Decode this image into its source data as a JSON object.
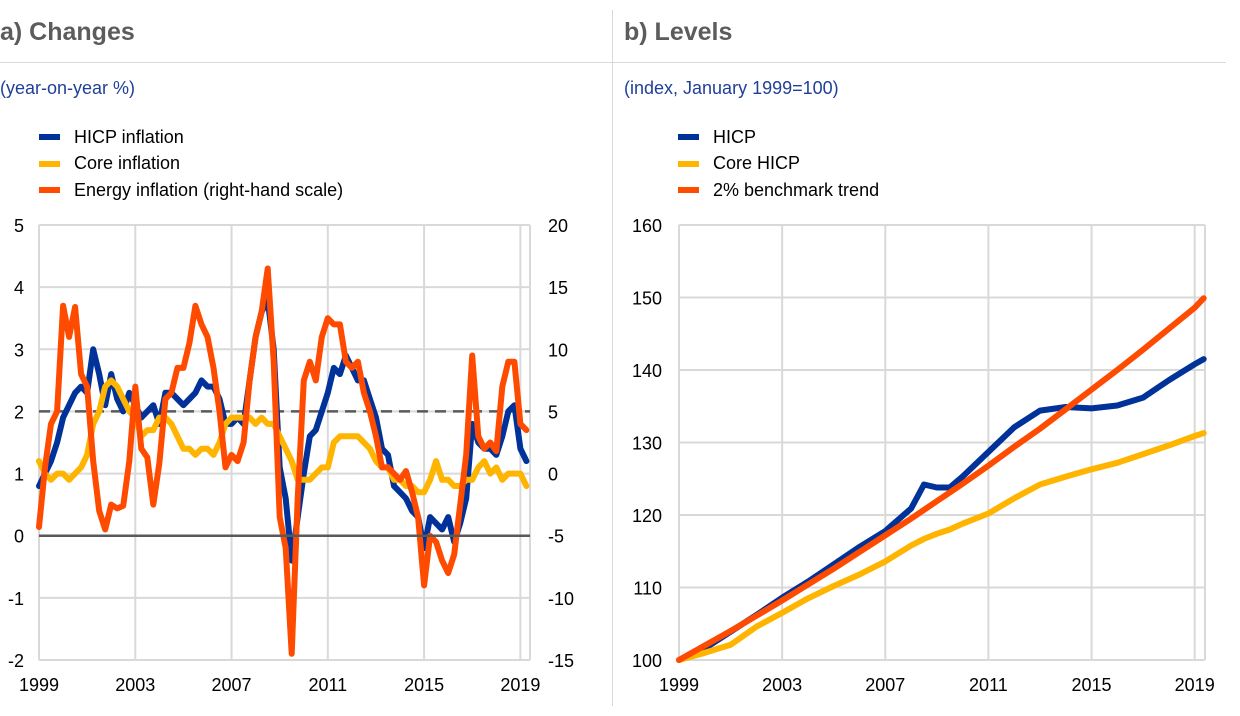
{
  "colors": {
    "hicp": "#003299",
    "core": "#ffb400",
    "energy": "#ff4b00",
    "benchmark": "#ff4b00",
    "grid": "#d9d9d9",
    "zero": "#595959",
    "dashed": "#595959"
  },
  "panel_a": {
    "title": "a) Changes",
    "subtitle": "(year-on-year %)",
    "legend": [
      {
        "label": "HICP inflation",
        "color": "#003299",
        "icon": "legend-swatch"
      },
      {
        "label": "Core inflation",
        "color": "#ffb400",
        "icon": "legend-swatch"
      },
      {
        "label": "Energy inflation (right-hand scale)",
        "color": "#ff4b00",
        "icon": "legend-swatch"
      }
    ]
  },
  "panel_b": {
    "title": "b) Levels",
    "subtitle": "(index, January 1999=100)",
    "legend": [
      {
        "label": "HICP",
        "color": "#003299",
        "icon": "legend-swatch"
      },
      {
        "label": "Core HICP",
        "color": "#ffb400",
        "icon": "legend-swatch"
      },
      {
        "label": "2% benchmark trend",
        "color": "#ff4b00",
        "icon": "legend-swatch"
      }
    ]
  },
  "chart_data": [
    {
      "type": "line",
      "title": "a) Changes",
      "subtitle": "(year-on-year %)",
      "xlabel": "",
      "ylabel": "",
      "xlim": [
        1999,
        2019.4
      ],
      "ylim": [
        -2,
        5
      ],
      "y2lim": [
        -15,
        20
      ],
      "x_ticks": [
        "1999",
        "2003",
        "2007",
        "2011",
        "2015",
        "2019"
      ],
      "y_ticks": [
        "5",
        "4",
        "3",
        "2",
        "1",
        "0",
        "-1",
        "-2"
      ],
      "y2_ticks": [
        "20",
        "15",
        "10",
        "5",
        "0",
        "-5",
        "-10",
        "-15"
      ],
      "grid": true,
      "reference_lines": [
        {
          "y": 2,
          "style": "dashed"
        },
        {
          "y": 0,
          "style": "solid"
        }
      ],
      "x": [
        1999.0,
        1999.25,
        1999.5,
        1999.75,
        2000.0,
        2000.25,
        2000.5,
        2000.75,
        2001.0,
        2001.25,
        2001.5,
        2001.75,
        2002.0,
        2002.25,
        2002.5,
        2002.75,
        2003.0,
        2003.25,
        2003.5,
        2003.75,
        2004.0,
        2004.25,
        2004.5,
        2004.75,
        2005.0,
        2005.25,
        2005.5,
        2005.75,
        2006.0,
        2006.25,
        2006.5,
        2006.75,
        2007.0,
        2007.25,
        2007.5,
        2007.75,
        2008.0,
        2008.25,
        2008.5,
        2008.75,
        2009.0,
        2009.25,
        2009.5,
        2009.75,
        2010.0,
        2010.25,
        2010.5,
        2010.75,
        2011.0,
        2011.25,
        2011.5,
        2011.75,
        2012.0,
        2012.25,
        2012.5,
        2012.75,
        2013.0,
        2013.25,
        2013.5,
        2013.75,
        2014.0,
        2014.25,
        2014.5,
        2014.75,
        2015.0,
        2015.25,
        2015.5,
        2015.75,
        2016.0,
        2016.25,
        2016.5,
        2016.75,
        2017.0,
        2017.25,
        2017.5,
        2017.75,
        2018.0,
        2018.25,
        2018.5,
        2018.75,
        2019.0,
        2019.25
      ],
      "series": [
        {
          "name": "HICP inflation",
          "axis": "left",
          "color": "#003299",
          "values": [
            0.8,
            1.0,
            1.2,
            1.5,
            1.9,
            2.1,
            2.3,
            2.4,
            2.3,
            3.0,
            2.6,
            2.1,
            2.6,
            2.2,
            2.0,
            2.3,
            2.1,
            1.9,
            2.0,
            2.1,
            1.8,
            2.3,
            2.3,
            2.2,
            2.1,
            2.2,
            2.3,
            2.5,
            2.4,
            2.4,
            2.2,
            1.8,
            1.8,
            1.9,
            1.8,
            2.5,
            3.2,
            3.6,
            3.8,
            3.0,
            1.1,
            0.6,
            -0.4,
            0.3,
            1.0,
            1.6,
            1.7,
            2.0,
            2.3,
            2.7,
            2.6,
            2.9,
            2.7,
            2.5,
            2.5,
            2.2,
            1.9,
            1.4,
            1.3,
            0.8,
            0.7,
            0.6,
            0.4,
            0.3,
            -0.2,
            0.3,
            0.2,
            0.1,
            0.3,
            -0.1,
            0.2,
            0.6,
            1.8,
            1.5,
            1.4,
            1.4,
            1.3,
            1.6,
            2.0,
            2.1,
            1.4,
            1.2
          ]
        },
        {
          "name": "Core inflation",
          "axis": "left",
          "color": "#ffb400",
          "values": [
            1.2,
            1.0,
            0.9,
            1.0,
            1.0,
            0.9,
            1.0,
            1.1,
            1.3,
            1.8,
            2.0,
            2.4,
            2.5,
            2.4,
            2.2,
            2.0,
            1.9,
            1.6,
            1.7,
            1.7,
            1.9,
            1.9,
            1.8,
            1.6,
            1.4,
            1.4,
            1.3,
            1.4,
            1.4,
            1.3,
            1.5,
            1.8,
            1.9,
            1.9,
            1.9,
            1.9,
            1.8,
            1.9,
            1.8,
            1.8,
            1.6,
            1.4,
            1.2,
            0.9,
            0.9,
            0.9,
            1.0,
            1.1,
            1.1,
            1.5,
            1.6,
            1.6,
            1.6,
            1.6,
            1.5,
            1.4,
            1.2,
            1.1,
            1.1,
            0.9,
            0.9,
            0.8,
            0.8,
            0.7,
            0.7,
            0.9,
            1.2,
            0.9,
            0.9,
            0.8,
            0.8,
            0.9,
            0.9,
            1.1,
            1.2,
            1.0,
            1.1,
            0.9,
            1.0,
            1.0,
            1.0,
            0.8
          ]
        },
        {
          "name": "Energy inflation (right-hand scale)",
          "axis": "right",
          "color": "#ff4b00",
          "values": [
            -4.3,
            0.5,
            4.0,
            5.0,
            13.5,
            11.0,
            13.4,
            8.0,
            7.0,
            1.0,
            -3.0,
            -4.5,
            -2.5,
            -2.8,
            -2.6,
            1.0,
            7.0,
            2.0,
            1.3,
            -2.5,
            0.8,
            6.0,
            6.5,
            8.5,
            8.5,
            10.5,
            13.5,
            12.0,
            11.0,
            8.5,
            5.0,
            0.5,
            1.5,
            1.0,
            2.5,
            7.5,
            11.0,
            13.0,
            16.5,
            9.0,
            -3.5,
            -6.0,
            -14.5,
            -2.0,
            7.5,
            9.0,
            7.5,
            11.0,
            12.5,
            12.0,
            12.0,
            9.0,
            8.5,
            9.0,
            6.5,
            5.0,
            3.0,
            0.5,
            0.5,
            0.0,
            -0.5,
            0.2,
            -1.5,
            -3.5,
            -9.0,
            -5.0,
            -5.5,
            -7.0,
            -8.0,
            -6.5,
            -2.5,
            1.5,
            9.5,
            3.0,
            2.0,
            2.5,
            1.8,
            7.0,
            9.0,
            9.0,
            4.0,
            3.5
          ]
        }
      ]
    },
    {
      "type": "line",
      "title": "b) Levels",
      "subtitle": "(index, January 1999=100)",
      "xlabel": "",
      "ylabel": "",
      "xlim": [
        1999,
        2019.4
      ],
      "ylim": [
        100,
        160
      ],
      "x_ticks": [
        "1999",
        "2003",
        "2007",
        "2011",
        "2015",
        "2019"
      ],
      "y_ticks": [
        "160",
        "150",
        "140",
        "130",
        "120",
        "110",
        "100"
      ],
      "grid": true,
      "x": [
        1999,
        2000,
        2001,
        2002,
        2003,
        2004,
        2005,
        2006,
        2007,
        2008,
        2008.5,
        2009,
        2009.5,
        2010,
        2011,
        2012,
        2013,
        2014,
        2015,
        2016,
        2017,
        2018,
        2019,
        2019.35
      ],
      "series": [
        {
          "name": "HICP",
          "color": "#003299",
          "values": [
            100,
            101.6,
            103.9,
            106.2,
            108.6,
            110.8,
            113.2,
            115.6,
            117.8,
            120.9,
            124.2,
            123.8,
            123.8,
            125.3,
            128.7,
            132.1,
            134.4,
            134.9,
            134.7,
            135.1,
            136.2,
            138.6,
            140.8,
            141.5
          ]
        },
        {
          "name": "Core HICP",
          "color": "#ffb400",
          "values": [
            100,
            101.0,
            102.1,
            104.6,
            106.5,
            108.5,
            110.2,
            111.8,
            113.6,
            115.8,
            116.7,
            117.4,
            118.0,
            118.8,
            120.2,
            122.3,
            124.2,
            125.3,
            126.3,
            127.2,
            128.4,
            129.6,
            130.9,
            131.3
          ]
        },
        {
          "name": "2% benchmark trend",
          "color": "#ff4b00",
          "values": [
            100,
            102.0,
            104.0,
            106.1,
            108.2,
            110.4,
            112.6,
            114.9,
            117.2,
            119.5,
            120.7,
            121.9,
            123.1,
            124.3,
            126.8,
            129.4,
            131.9,
            134.6,
            137.3,
            140.0,
            142.8,
            145.7,
            148.6,
            149.9
          ]
        }
      ]
    }
  ]
}
